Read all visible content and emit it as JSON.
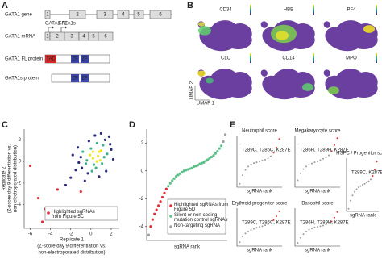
{
  "figure": {
    "panel_labels": [
      "A",
      "B",
      "C",
      "D",
      "E"
    ],
    "a": {
      "rows": [
        "GATA1 gene",
        "GATA1 mRNA",
        "GATA1 FL protein",
        "GATA1s protein"
      ],
      "exons": [
        "1",
        "2",
        "3",
        "4",
        "5",
        "6"
      ],
      "promoters": [
        "GATA1 FL",
        "GATA1s"
      ],
      "tad": "TAD",
      "zf": "ZF"
    },
    "b": {
      "genes": [
        "CD34",
        "HBB",
        "PF4",
        "CLC",
        "CD14",
        "MPO"
      ],
      "x_axis": "UMAP 1",
      "y_axis": "UMAP 2"
    }
  },
  "chart_data": [
    {
      "type": "scatter",
      "x_label": "Replicate 1",
      "x_label_sub": [
        "(Z-score day 9 differentiation vs.",
        "non-electroporated distribution)"
      ],
      "y_label": "Replicate 2",
      "y_label_sub": [
        "(Z-score day 9 differentiation vs.",
        "non-electroporated distribution)"
      ],
      "x": [
        0.2,
        0.8,
        -0.5,
        1.2,
        0.5,
        -1.0,
        1.6,
        0.0,
        -0.3,
        0.9,
        1.4,
        -1.5,
        0.6,
        2.0,
        -0.8,
        0.3,
        1.1,
        -0.1,
        0.7,
        1.8,
        -2.0,
        -1.2,
        0.4,
        2.2,
        -0.6,
        1.0,
        0.1,
        -1.8,
        1.5,
        -0.2,
        0.6,
        1.3,
        -0.9,
        0.8,
        -2.5,
        1.9,
        0.2,
        -0.4,
        1.0,
        -1.3
      ],
      "values": [
        0.3,
        0.9,
        -0.2,
        1.5,
        -0.6,
        0.4,
        0.7,
        1.2,
        -1.1,
        0.1,
        2.0,
        -0.8,
        1.7,
        1.1,
        0.9,
        -0.3,
        -0.2,
        0.6,
        0.5,
        2.3,
        -1.5,
        -0.1,
        2.4,
        0.2,
        -1.8,
        1.0,
        -0.9,
        0.6,
        -0.9,
        1.9,
        0.0,
        0.4,
        -0.6,
        -1.4,
        -2.2,
        1.6,
        0.9,
        0.1,
        2.6,
        1.3
      ],
      "series": [
        {
          "name": "Highlighted sgRNAs from Figure 5C",
          "color": "#e0303a",
          "x": [
            -6.0,
            -5.2,
            -4.5,
            -4.8,
            -3.3,
            -2.0,
            -1.0
          ],
          "values": [
            -0.4,
            -3.4,
            -4.4,
            -5.6,
            -2.6,
            -5.3,
            -2.8
          ]
        }
      ],
      "xlim": [
        -6.6,
        2.8
      ],
      "ylim": [
        -6.2,
        3
      ],
      "xticks": [
        -6,
        -4,
        -2,
        0,
        2
      ],
      "yticks": [
        2,
        0,
        -2,
        -4
      ]
    },
    {
      "type": "scatter",
      "x_label": "sgRNA rank",
      "series": [
        {
          "name": "Highlighted sgRNAs from Figure 5D",
          "color": "#e0303a",
          "x": [
            2,
            3,
            4,
            5,
            6,
            7,
            8,
            9,
            10
          ],
          "values": [
            -4.0,
            -3.5,
            -3.1,
            -2.8,
            -2.5,
            -2.2,
            -1.9,
            -1.6,
            -1.3
          ]
        },
        {
          "name": "Silent or non-coding mutation control sgRNAs",
          "color": "#5cc08a",
          "x": [
            11,
            12,
            13,
            14,
            15,
            16,
            17,
            18,
            19,
            20,
            21,
            22,
            23,
            24,
            25,
            26,
            27,
            28,
            29,
            30,
            31,
            32,
            33,
            34,
            35,
            36,
            37,
            38
          ],
          "values": [
            -1.1,
            -0.9,
            -0.7,
            -0.55,
            -0.4,
            -0.3,
            -0.2,
            -0.1,
            0.0,
            0.05,
            0.1,
            0.15,
            0.2,
            0.3,
            0.35,
            0.4,
            0.5,
            0.55,
            0.6,
            0.7,
            0.8,
            0.9,
            1.0,
            1.1,
            1.25,
            1.4,
            1.6,
            1.8
          ]
        },
        {
          "name": "Non-targeting sgRNA",
          "color": "#a0a0a0",
          "x": [
            1,
            39,
            40
          ],
          "values": [
            -4.6,
            2.1,
            2.6
          ]
        }
      ],
      "xlim": [
        0,
        41
      ],
      "ylim": [
        -5,
        3
      ],
      "yticks": [
        2,
        0,
        -2,
        -4
      ]
    },
    {
      "type": "scatter",
      "title": "Neutrophil score",
      "x_label": "sgRNA rank",
      "annotation": "T289C, T286C, K287E",
      "color": "#9a9a9a",
      "x": [
        1,
        2,
        3,
        4,
        5,
        6,
        7,
        8,
        9,
        10,
        11,
        12
      ],
      "values": [
        -2.6,
        -1.6,
        -1.0,
        -0.6,
        -0.35,
        -0.2,
        -0.1,
        0,
        0.1,
        0.2,
        0.35,
        0.6
      ],
      "highlight": {
        "color": "#e0303a",
        "x": [
          13,
          14,
          15
        ],
        "values": [
          1.0,
          1.6,
          2.6
        ]
      },
      "xlim": [
        0,
        16
      ],
      "ylim": [
        -3,
        3
      ]
    },
    {
      "type": "scatter",
      "title": "Megakaryocyte score",
      "x_label": "sgRNA rank",
      "annotation": "T286H, T289H, K287E",
      "color": "#9a9a9a",
      "x": [
        1,
        2,
        3,
        4,
        5,
        6,
        7,
        8,
        9,
        10,
        11,
        12
      ],
      "values": [
        -2.2,
        -1.4,
        -0.9,
        -0.6,
        -0.4,
        -0.25,
        -0.1,
        0,
        0.15,
        0.3,
        0.45,
        0.7
      ],
      "highlight": {
        "color": "#e0303a",
        "x": [
          13,
          14,
          15
        ],
        "values": [
          1.2,
          1.9,
          2.7
        ]
      },
      "xlim": [
        0,
        16
      ],
      "ylim": [
        -3,
        3
      ]
    },
    {
      "type": "scatter",
      "title": "Erythroid progenitor score",
      "x_label": "sgRNA rank",
      "annotation": "T289C, T286C, K287E",
      "color": "#9a9a9a",
      "x": [
        1,
        2,
        3,
        4,
        5,
        6,
        7,
        8,
        9,
        10,
        11,
        12
      ],
      "values": [
        -2.4,
        -1.5,
        -1.0,
        -0.7,
        -0.45,
        -0.25,
        -0.1,
        0.05,
        0.15,
        0.3,
        0.45,
        0.65
      ],
      "highlight": {
        "color": "#e0303a",
        "x": [
          13,
          14,
          15
        ],
        "values": [
          1.1,
          1.7,
          2.5
        ]
      },
      "xlim": [
        0,
        16
      ],
      "ylim": [
        -3,
        3
      ]
    },
    {
      "type": "scatter",
      "title": "Basophil score",
      "x_label": "sgRNA rank",
      "annotation": "T286H, T289H, K287E",
      "color": "#9a9a9a",
      "x": [
        1,
        2,
        3,
        4,
        5,
        6,
        7,
        8,
        9,
        10,
        11,
        12
      ],
      "values": [
        -2.5,
        -1.7,
        -1.1,
        -0.7,
        -0.4,
        -0.2,
        -0.05,
        0.05,
        0.15,
        0.25,
        0.4,
        0.6
      ],
      "highlight": {
        "color": "#e0303a",
        "x": [
          13,
          14,
          15
        ],
        "values": [
          0.9,
          1.5,
          2.4
        ]
      },
      "xlim": [
        0,
        16
      ],
      "ylim": [
        -3,
        3
      ]
    },
    {
      "type": "scatter",
      "title": "HSPC / Progenitor score",
      "x_label": "sgRNA rank",
      "annotation": "T289C, K287E",
      "color": "#9a9a9a",
      "x": [
        1,
        2,
        3,
        4,
        5,
        6,
        7,
        8,
        9,
        10,
        11,
        12
      ],
      "values": [
        -2.7,
        -1.8,
        -1.2,
        -0.8,
        -0.5,
        -0.3,
        -0.15,
        0,
        0.1,
        0.25,
        0.4,
        0.6
      ],
      "highlight": {
        "color": "#e0303a",
        "x": [
          13,
          14,
          15
        ],
        "values": [
          1.0,
          1.7,
          2.6
        ]
      },
      "xlim": [
        0,
        16
      ],
      "ylim": [
        -3,
        3
      ]
    }
  ]
}
